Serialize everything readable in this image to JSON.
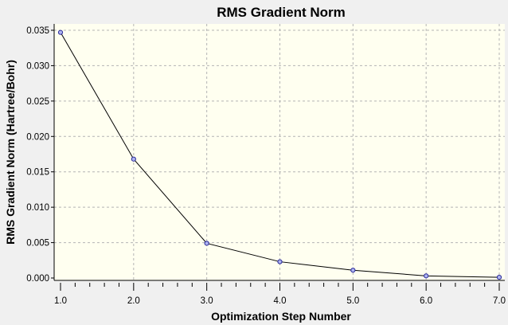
{
  "chart_data": {
    "type": "line",
    "title": "RMS Gradient Norm",
    "xlabel": "Optimization Step Number",
    "ylabel": "RMS Gradient Norm (Hartree/Bohr)",
    "x": [
      1,
      2,
      3,
      4,
      5,
      6,
      7
    ],
    "series": [
      {
        "values": [
          0.0347,
          0.0168,
          0.0049,
          0.0023,
          0.0011,
          0.0003,
          0.0001
        ]
      }
    ],
    "xlim": [
      1.0,
      7.0
    ],
    "ylim": [
      0,
      0.035
    ],
    "xticks": [
      "1.0",
      "2.0",
      "3.0",
      "4.0",
      "5.0",
      "6.0",
      "7.0"
    ],
    "yticks": [
      "0.000",
      "0.005",
      "0.010",
      "0.015",
      "0.020",
      "0.025",
      "0.030",
      "0.035"
    ],
    "grid": true,
    "colors": {
      "plot_background": "#fffff0",
      "outer_background": "#f0f0f0",
      "line": "#000000",
      "marker_fill": "#aeb4f0",
      "marker_stroke": "#2a2a9a",
      "grid": "#b4b4b4"
    }
  }
}
